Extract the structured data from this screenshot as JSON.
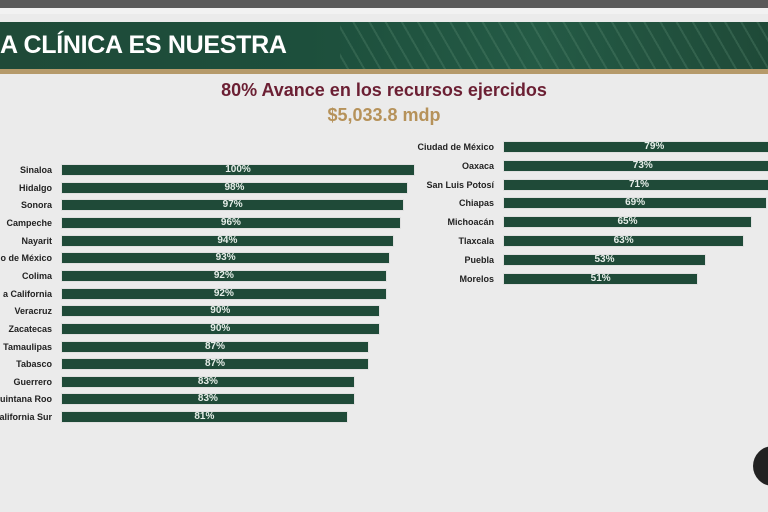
{
  "header": {
    "banner_title": "A CLÍNICA ES NUESTRA"
  },
  "chart_data": [
    {
      "type": "bar",
      "orientation": "horizontal",
      "title": "80% Avance en los recursos ejercidos",
      "subtitle": "$5,033.8 mdp",
      "categories": [
        "Sinaloa",
        "Hidalgo",
        "Sonora",
        "Campeche",
        "Nayarit",
        "o de México",
        "Colima",
        "a California",
        "Veracruz",
        "Zacatecas",
        "Tamaulipas",
        "Tabasco",
        "Guerrero",
        "uintana Roo",
        "alifornia Sur"
      ],
      "values": [
        100,
        98,
        97,
        96,
        94,
        93,
        92,
        92,
        90,
        90,
        87,
        87,
        83,
        83,
        81
      ],
      "labels": [
        "100%",
        "98%",
        "97%",
        "96%",
        "94%",
        "93%",
        "92%",
        "92%",
        "90%",
        "90%",
        "87%",
        "87%",
        "83%",
        "83%",
        "81%"
      ],
      "xlim": [
        0,
        100
      ],
      "color": "#1f4a38"
    },
    {
      "type": "bar",
      "orientation": "horizontal",
      "categories": [
        "Ciudad de México",
        "Oaxaca",
        "San Luis Potosí",
        "Chiapas",
        "Michoacán",
        "Tlaxcala",
        "Puebla",
        "Morelos"
      ],
      "values": [
        79,
        73,
        71,
        69,
        65,
        63,
        53,
        51
      ],
      "labels": [
        "79%",
        "73%",
        "71%",
        "69%",
        "65%",
        "63%",
        "53%",
        "51%"
      ],
      "xlim": [
        0,
        100
      ],
      "color": "#1f4a38"
    }
  ]
}
